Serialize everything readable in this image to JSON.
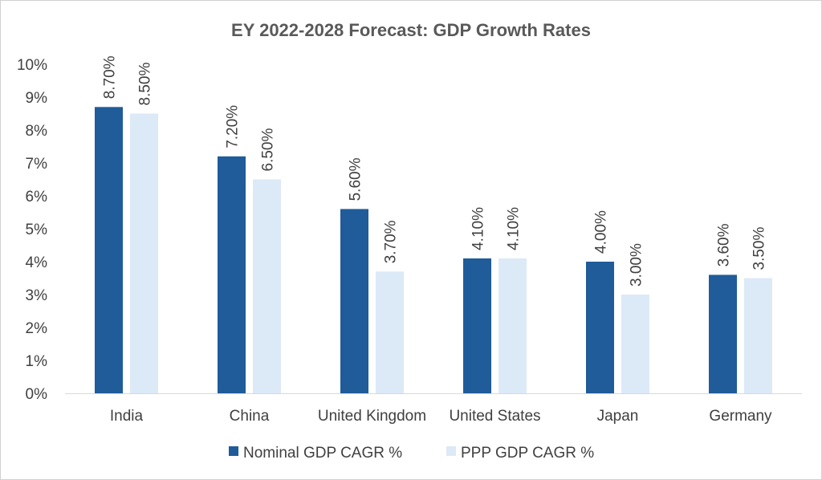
{
  "chart_data": {
    "type": "bar",
    "title": "EY 2022-2028 Forecast: GDP Growth Rates",
    "categories": [
      "India",
      "China",
      "United Kingdom",
      "United States",
      "Japan",
      "Germany"
    ],
    "series": [
      {
        "name": "Nominal GDP CAGR %",
        "color": "#1f5c99",
        "values": [
          8.7,
          7.2,
          5.6,
          4.1,
          4.0,
          3.6
        ],
        "labels": [
          "8.70%",
          "7.20%",
          "5.60%",
          "4.10%",
          "4.00%",
          "3.60%"
        ]
      },
      {
        "name": "PPP GDP CAGR %",
        "color": "#dce9f7",
        "values": [
          8.5,
          6.5,
          3.7,
          4.1,
          3.0,
          3.5
        ],
        "labels": [
          "8.50%",
          "6.50%",
          "3.70%",
          "4.10%",
          "3.00%",
          "3.50%"
        ]
      }
    ],
    "ylim": [
      0,
      10
    ],
    "yticks": [
      0,
      1,
      2,
      3,
      4,
      5,
      6,
      7,
      8,
      9,
      10
    ],
    "ytick_labels": [
      "0%",
      "1%",
      "2%",
      "3%",
      "4%",
      "5%",
      "6%",
      "7%",
      "8%",
      "9%",
      "10%"
    ],
    "xlabel": "",
    "ylabel": "",
    "grid": false,
    "legend": "bottom"
  }
}
